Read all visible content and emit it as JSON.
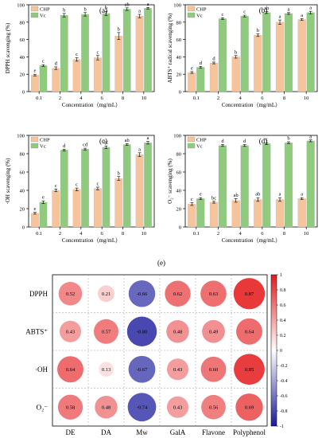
{
  "chart_data": [
    {
      "type": "bar",
      "panel_label": "(a)",
      "categories": [
        "0.1",
        "2",
        "4",
        "6",
        "8",
        "10"
      ],
      "xlabel": "Concentration（mg/mL）",
      "ylabel": "DPPH scavenging (%)",
      "ylim": [
        0,
        100
      ],
      "yticks": [
        "0",
        "20",
        "40",
        "60",
        "80",
        "100"
      ],
      "series": [
        {
          "name": "CHP",
          "color": "#f5c49b",
          "values": [
            19,
            27,
            37,
            39,
            64,
            87
          ],
          "errors": [
            1,
            1.5,
            2,
            2.5,
            4,
            2
          ],
          "letters": [
            "e",
            "d",
            "c",
            "c",
            "b",
            "a"
          ]
        },
        {
          "name": "Vc",
          "color": "#8fca7e",
          "values": [
            30,
            88,
            89,
            90,
            95,
            96
          ],
          "errors": [
            1,
            2,
            2,
            2.5,
            1.5,
            1
          ],
          "letters": [
            "c",
            "b",
            "b",
            "b",
            "ab",
            "a"
          ]
        }
      ],
      "legend": "top-left"
    },
    {
      "type": "bar",
      "panel_label": "(b)",
      "categories": [
        "0.1",
        "2",
        "4",
        "6",
        "8",
        "10"
      ],
      "xlabel": "Concentration（mg/mL）",
      "ylabel": "ABTS⁺ radical scavenging (%)",
      "ylim": [
        0,
        100
      ],
      "yticks": [
        "0",
        "20",
        "40",
        "60",
        "80",
        "100"
      ],
      "series": [
        {
          "name": "CHP",
          "color": "#f5c49b",
          "values": [
            22,
            33,
            40,
            65,
            80,
            83
          ],
          "errors": [
            1,
            1,
            1.5,
            1.5,
            2.5,
            1
          ],
          "letters": [
            "e",
            "d",
            "b",
            "b",
            "a",
            "a"
          ]
        },
        {
          "name": "Vc",
          "color": "#8fca7e",
          "values": [
            28,
            84,
            87,
            91,
            90,
            91
          ],
          "errors": [
            1,
            1,
            1,
            1,
            1,
            1.5
          ],
          "letters": [
            "d",
            "c",
            "c",
            "ab",
            "a",
            "a"
          ]
        }
      ],
      "legend": "top-left"
    },
    {
      "type": "bar",
      "panel_label": "(c)",
      "categories": [
        "0.1",
        "2",
        "4",
        "6",
        "8",
        "10"
      ],
      "xlabel": "Concentration（mg/mL）",
      "ylabel": "·OH scavenging (%)",
      "ylim": [
        0,
        100
      ],
      "yticks": [
        "0",
        "20",
        "40",
        "60",
        "80",
        "100"
      ],
      "series": [
        {
          "name": "CHP",
          "color": "#f5c49b",
          "values": [
            15,
            40,
            41,
            42,
            53,
            79
          ],
          "errors": [
            1,
            1.5,
            1.5,
            1.5,
            2,
            2
          ],
          "letters": [
            "e",
            "c",
            "c",
            "c",
            "b",
            "a"
          ]
        },
        {
          "name": "Vc",
          "color": "#8fca7e",
          "values": [
            27,
            84,
            85,
            87,
            90,
            92
          ],
          "errors": [
            1.5,
            1,
            1,
            1.5,
            1,
            1.5
          ],
          "letters": [
            "e",
            "d",
            "cd",
            "bc",
            "ab",
            "a"
          ]
        }
      ],
      "legend": "top-left"
    },
    {
      "type": "bar",
      "panel_label": "(d)",
      "categories": [
        "0.1",
        "2",
        "4",
        "6",
        "8",
        "10"
      ],
      "xlabel": "Concentration（mg/mL）",
      "ylabel": "O₂⁻ scavenging (%)",
      "ylim": [
        0,
        100
      ],
      "yticks": [
        "0",
        "20",
        "40",
        "60",
        "80",
        "100"
      ],
      "series": [
        {
          "name": "CHP",
          "color": "#f5c49b",
          "values": [
            25,
            27,
            29,
            30,
            30,
            31
          ],
          "errors": [
            1.5,
            1,
            2,
            2,
            2,
            1
          ],
          "letters": [
            "c",
            "bc",
            "ab",
            "ab",
            "a",
            "a"
          ]
        },
        {
          "name": "Vc",
          "color": "#8fca7e",
          "values": [
            31,
            89,
            89,
            91,
            92,
            94
          ],
          "errors": [
            1,
            1,
            1,
            1,
            1,
            1
          ],
          "letters": [
            "e",
            "d",
            "d",
            "c",
            "b",
            "a"
          ]
        }
      ],
      "legend": "top-left"
    },
    {
      "type": "heatmap",
      "panel_label": "(e)",
      "rows": [
        "DPPH",
        "ABTS⁺",
        "·OH",
        "O₂⁻"
      ],
      "columns": [
        "DE",
        "DA",
        "Mw",
        "GalA",
        "Flavone",
        "Polyphenol"
      ],
      "values": [
        [
          0.52,
          0.21,
          -0.66,
          0.62,
          0.63,
          0.87
        ],
        [
          0.43,
          0.57,
          -0.8,
          0.48,
          0.49,
          0.64
        ],
        [
          0.64,
          0.13,
          -0.67,
          0.43,
          0.6,
          0.85
        ],
        [
          0.58,
          0.48,
          -0.74,
          0.43,
          0.56,
          0.69
        ]
      ],
      "colorbar_ticks": [
        "1",
        "0.8",
        "0.6",
        "0.4",
        "0.2",
        "0",
        "-0.2",
        "-0.4",
        "-0.6",
        "-0.8",
        "-1"
      ],
      "colors": {
        "positive": "#e41a1c",
        "negative": "#1a1a9c",
        "neutral": "#ffffff"
      }
    }
  ]
}
